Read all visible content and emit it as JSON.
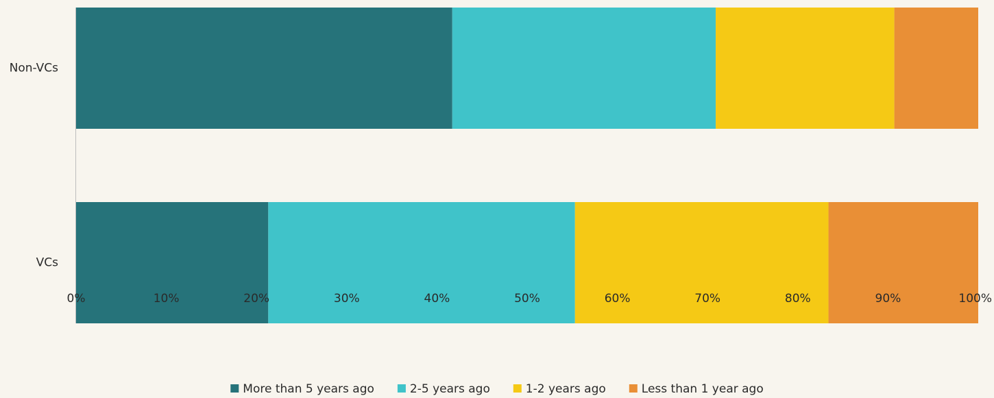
{
  "chart_data": {
    "type": "bar",
    "orientation": "horizontal",
    "stacked": true,
    "categories": [
      "Non-VCs",
      "VCs"
    ],
    "series": [
      {
        "name": "More than 5 years ago",
        "color": "#26737a",
        "values": [
          41.7,
          21.3
        ]
      },
      {
        "name": "2-5 years ago",
        "color": "#40c3c9",
        "values": [
          29.2,
          34.0
        ]
      },
      {
        "name": "1-2 years ago",
        "color": "#f5c915",
        "values": [
          19.8,
          28.1
        ]
      },
      {
        "name": "Less than 1 year ago",
        "color": "#e98f36",
        "values": [
          9.3,
          16.6
        ]
      }
    ],
    "xlim": [
      0,
      100
    ],
    "xticks": [
      "0%",
      "10%",
      "20%",
      "30%",
      "40%",
      "50%",
      "60%",
      "70%",
      "80%",
      "90%",
      "100%"
    ],
    "grid": false,
    "legend_position": "bottom"
  }
}
